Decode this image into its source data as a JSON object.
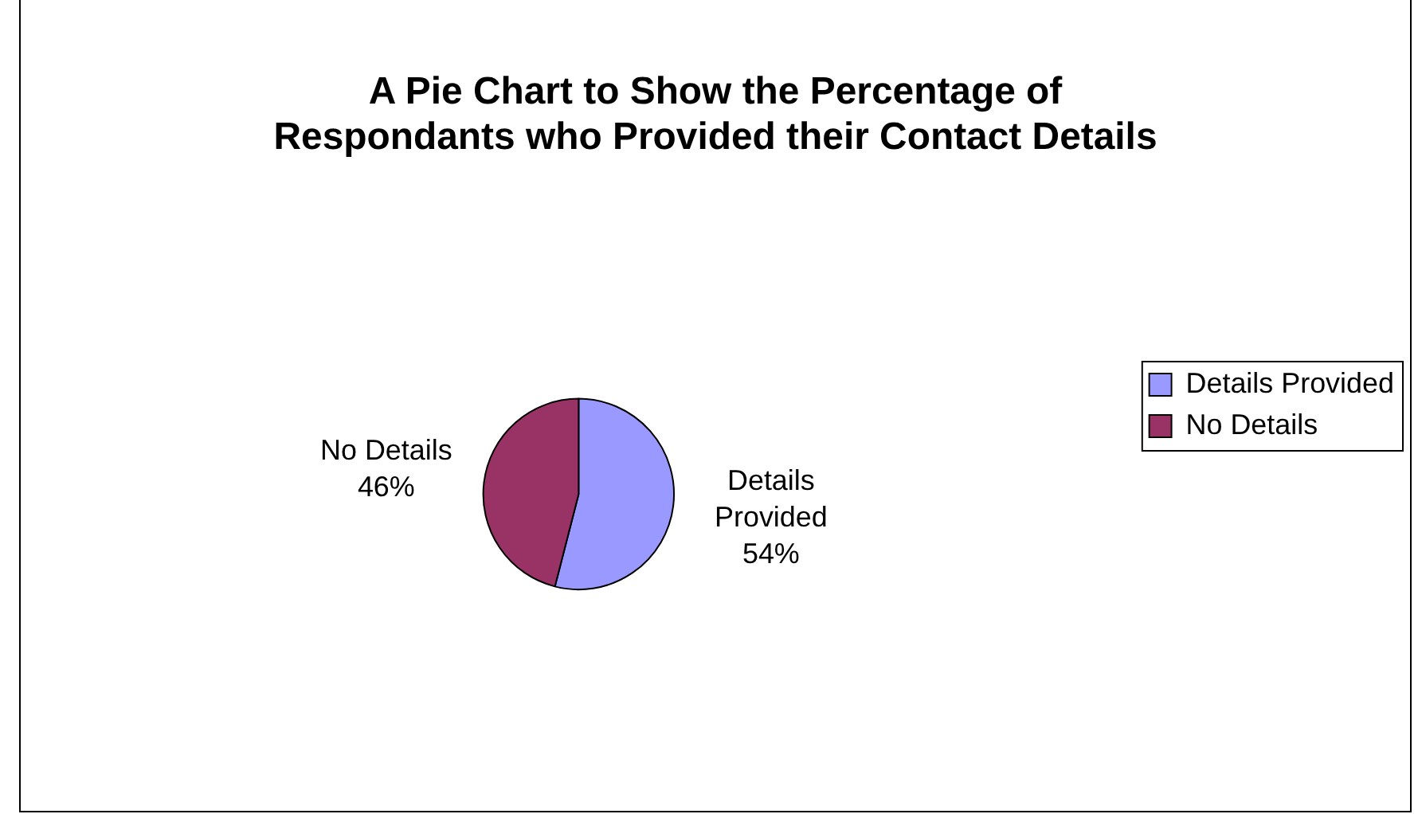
{
  "chart_data": {
    "type": "pie",
    "title": "A Pie Chart to Show the Percentage of Respondants who Provided their Contact Details",
    "categories": [
      "Details Provided",
      "No Details"
    ],
    "values": [
      54,
      46
    ],
    "colors": [
      "#9999ff",
      "#993366"
    ],
    "value_labels": [
      "54%",
      "46%"
    ],
    "legend": "right"
  }
}
